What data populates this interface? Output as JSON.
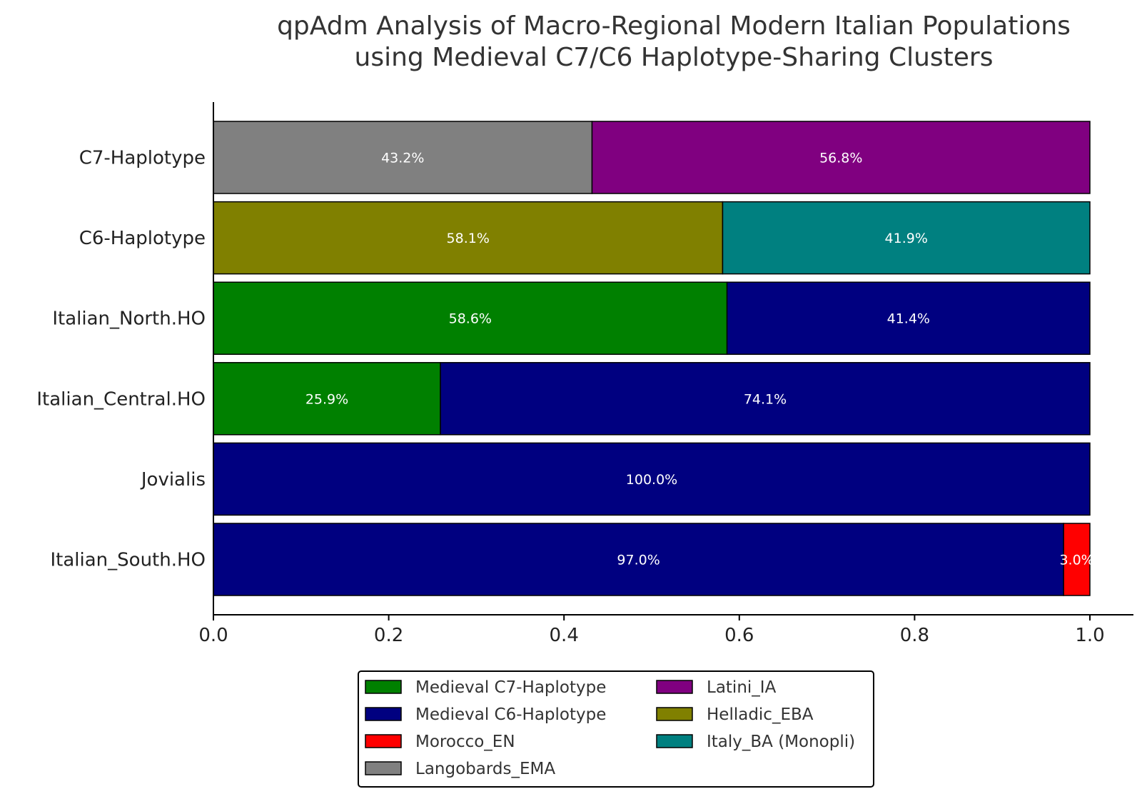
{
  "chart_data": {
    "type": "bar",
    "orientation": "horizontal",
    "stacked": true,
    "title": "qpAdm Analysis of Macro-Regional Modern Italian Populations using Medieval C7/C6 Haplotype-Sharing Clusters",
    "title_lines": [
      "qpAdm Analysis of Macro-Regional Modern Italian Populations",
      "using Medieval C7/C6 Haplotype-Sharing Clusters"
    ],
    "categories": [
      "C7-Haplotype",
      "C6-Haplotype",
      "Italian_North.HO",
      "Italian_Central.HO",
      "Jovialis",
      "Italian_South.HO"
    ],
    "xlim": [
      0.0,
      1.0
    ],
    "xticks": [
      "0.0",
      "0.2",
      "0.4",
      "0.6",
      "0.8",
      "1.0"
    ],
    "grid": false,
    "legend_position": "bottom-center",
    "legend_columns": 2,
    "series": [
      {
        "name": "Medieval C7-Haplotype",
        "color": "#008000",
        "values": [
          0,
          0,
          0.586,
          0.259,
          0,
          0
        ]
      },
      {
        "name": "Medieval C6-Haplotype",
        "color": "#000080",
        "values": [
          0,
          0,
          0.414,
          0.741,
          1.0,
          0.97
        ]
      },
      {
        "name": "Morocco_EN",
        "color": "#ff0000",
        "values": [
          0,
          0,
          0,
          0,
          0,
          0.03
        ]
      },
      {
        "name": "Langobards_EMA",
        "color": "#808080",
        "values": [
          0.432,
          0,
          0,
          0,
          0,
          0
        ]
      },
      {
        "name": "Latini_IA",
        "color": "#800080",
        "values": [
          0.568,
          0,
          0,
          0,
          0,
          0
        ]
      },
      {
        "name": "Helladic_EBA",
        "color": "#808000",
        "values": [
          0,
          0.581,
          0,
          0,
          0,
          0
        ]
      },
      {
        "name": "Italy_BA (Monopli)",
        "color": "#008080",
        "values": [
          0,
          0.419,
          0,
          0,
          0,
          0
        ]
      }
    ],
    "segment_order": {
      "C7-Haplotype": [
        "Langobards_EMA",
        "Latini_IA"
      ],
      "C6-Haplotype": [
        "Helladic_EBA",
        "Italy_BA (Monopli)"
      ],
      "Italian_North.HO": [
        "Medieval C7-Haplotype",
        "Medieval C6-Haplotype"
      ],
      "Italian_Central.HO": [
        "Medieval C7-Haplotype",
        "Medieval C6-Haplotype"
      ],
      "Jovialis": [
        "Medieval C6-Haplotype"
      ],
      "Italian_South.HO": [
        "Medieval C6-Haplotype",
        "Morocco_EN"
      ]
    },
    "data_labels": {
      "C7-Haplotype": [
        "43.2%",
        "56.8%"
      ],
      "C6-Haplotype": [
        "58.1%",
        "41.9%"
      ],
      "Italian_North.HO": [
        "58.6%",
        "41.4%"
      ],
      "Italian_Central.HO": [
        "25.9%",
        "74.1%"
      ],
      "Jovialis": [
        "100.0%"
      ],
      "Italian_South.HO": [
        "97.0%",
        "3.0%"
      ]
    },
    "legend_order": [
      "Medieval C7-Haplotype",
      "Medieval C6-Haplotype",
      "Morocco_EN",
      "Langobards_EMA",
      "Latini_IA",
      "Helladic_EBA",
      "Italy_BA (Monopli)"
    ]
  }
}
